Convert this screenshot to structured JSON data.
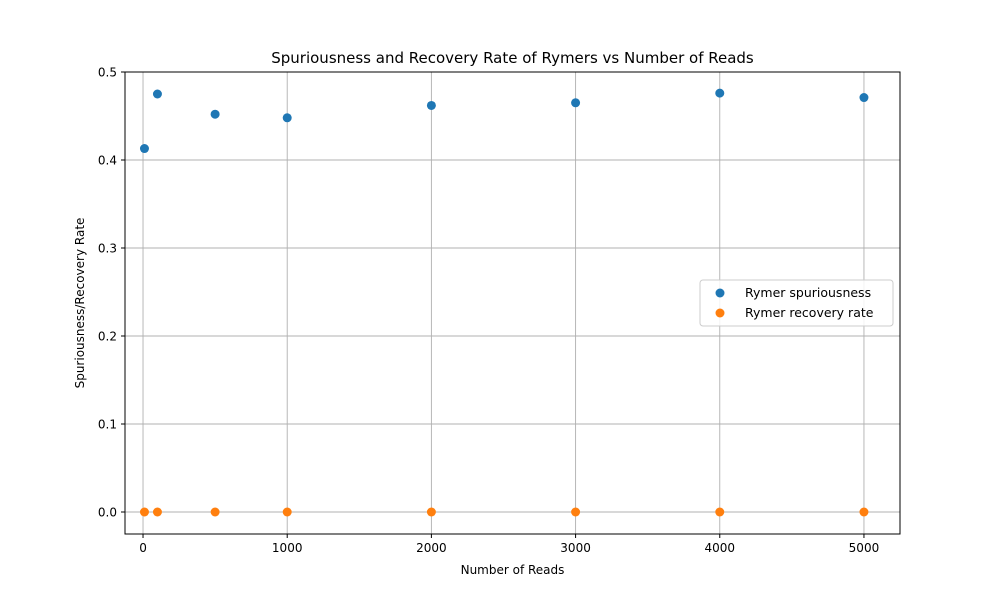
{
  "chart_data": {
    "type": "scatter",
    "title": "Spuriousness and Recovery Rate of Rymers vs Number of Reads",
    "xlabel": "Number of Reads",
    "ylabel": "Spuriousness/Recovery Rate",
    "xlim": [
      -125,
      5250
    ],
    "ylim": [
      -0.025,
      0.5
    ],
    "xticks": [
      0,
      1000,
      2000,
      3000,
      4000,
      5000
    ],
    "yticks": [
      0.0,
      0.1,
      0.2,
      0.3,
      0.4,
      0.5
    ],
    "xtick_labels": [
      "0",
      "1000",
      "2000",
      "3000",
      "4000",
      "5000"
    ],
    "ytick_labels": [
      "0.0",
      "0.1",
      "0.2",
      "0.3",
      "0.4",
      "0.5"
    ],
    "grid": true,
    "legend_position": "center-right",
    "series": [
      {
        "name": "Rymer spuriousness",
        "color": "#1f77b4",
        "x": [
          10,
          100,
          500,
          1000,
          2000,
          3000,
          4000,
          5000
        ],
        "y": [
          0.413,
          0.475,
          0.452,
          0.448,
          0.462,
          0.465,
          0.476,
          0.471
        ]
      },
      {
        "name": "Rymer recovery rate",
        "color": "#ff7f0e",
        "x": [
          10,
          100,
          500,
          1000,
          2000,
          3000,
          4000,
          5000
        ],
        "y": [
          0,
          0,
          0,
          0,
          0,
          0,
          0,
          0
        ]
      }
    ]
  }
}
